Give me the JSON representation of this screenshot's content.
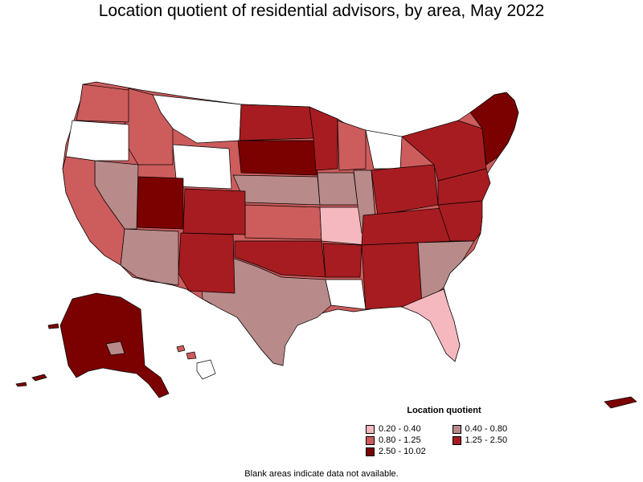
{
  "title": "Location quotient of residential advisors, by area, May 2022",
  "legend": {
    "title": "Location quotient",
    "items": [
      {
        "label": "0.20 - 0.40",
        "color": "#f5b8bf",
        "class": "c1"
      },
      {
        "label": "0.40 - 0.80",
        "color": "#b88a8a",
        "class": "c2"
      },
      {
        "label": "0.80 - 1.25",
        "color": "#cd5c5c",
        "class": "c3"
      },
      {
        "label": "1.25 - 2.50",
        "color": "#a71c20",
        "class": "c4"
      },
      {
        "label": "2.50 - 10.02",
        "color": "#7b0000",
        "class": "c5"
      }
    ]
  },
  "footnote": "Blank areas indicate data not available.",
  "palette": {
    "c0": "#ffffff",
    "c1": "#f5b8bf",
    "c2": "#b88a8a",
    "c3": "#cd5c5c",
    "c4": "#a71c20",
    "c5": "#7b0000",
    "border": "#000000"
  }
}
